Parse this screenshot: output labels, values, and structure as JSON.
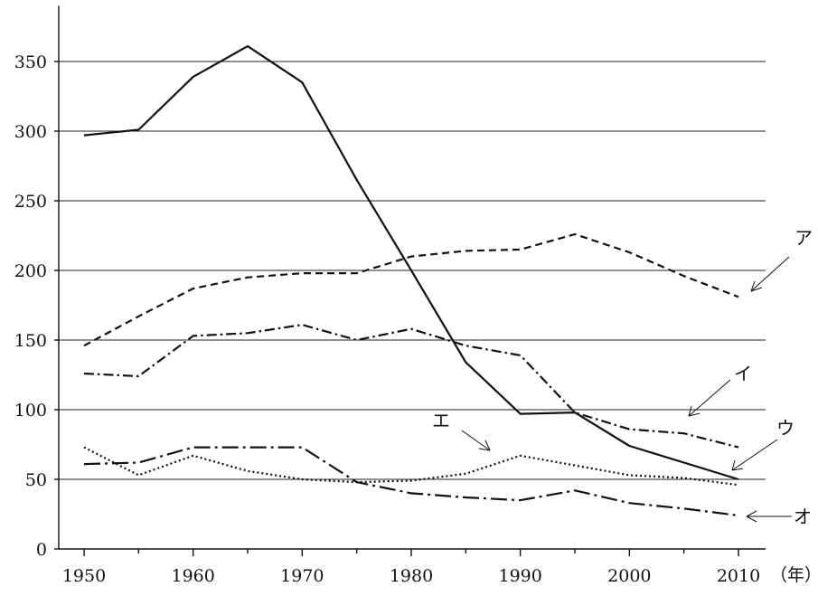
{
  "chart_data": {
    "type": "line",
    "title": "",
    "xlabel": "",
    "ylabel": "",
    "x_unit_label": "（年）",
    "xlim": [
      1948,
      2012
    ],
    "ylim": [
      0,
      350
    ],
    "y_axis_top": 390,
    "x_ticks": [
      1950,
      1960,
      1970,
      1980,
      1990,
      2000,
      2010
    ],
    "x_tick_labels": [
      "1950",
      "1960",
      "1970",
      "1980",
      "1990",
      "2000",
      "2010"
    ],
    "y_ticks": [
      0,
      50,
      100,
      150,
      200,
      250,
      300,
      350
    ],
    "y_tick_labels": [
      "0",
      "50",
      "100",
      "150",
      "200",
      "250",
      "300",
      "350"
    ],
    "grid": "horizontal",
    "x": [
      1950,
      1955,
      1960,
      1965,
      1970,
      1975,
      1980,
      1985,
      1990,
      1995,
      2000,
      2005,
      2010
    ],
    "series": [
      {
        "name": "ア",
        "style": "dashed",
        "values": [
          146,
          167,
          187,
          195,
          198,
          198,
          210,
          214,
          215,
          226,
          213,
          196,
          181
        ]
      },
      {
        "name": "イ",
        "style": "dash-dot",
        "values": [
          126,
          124,
          153,
          155,
          161,
          150,
          158,
          146,
          139,
          98,
          86,
          83,
          73
        ]
      },
      {
        "name": "ウ",
        "style": "solid",
        "values": [
          297,
          301,
          339,
          361,
          335,
          265,
          200,
          134,
          97,
          98,
          74,
          62,
          50
        ]
      },
      {
        "name": "エ",
        "style": "dotted",
        "values": [
          73,
          53,
          67,
          56,
          50,
          48,
          49,
          54,
          67,
          60,
          53,
          51,
          46
        ]
      },
      {
        "name": "オ",
        "style": "long-dash-dot",
        "values": [
          61,
          62,
          73,
          73,
          73,
          48,
          40,
          37,
          35,
          42,
          33,
          29,
          24
        ]
      }
    ]
  }
}
